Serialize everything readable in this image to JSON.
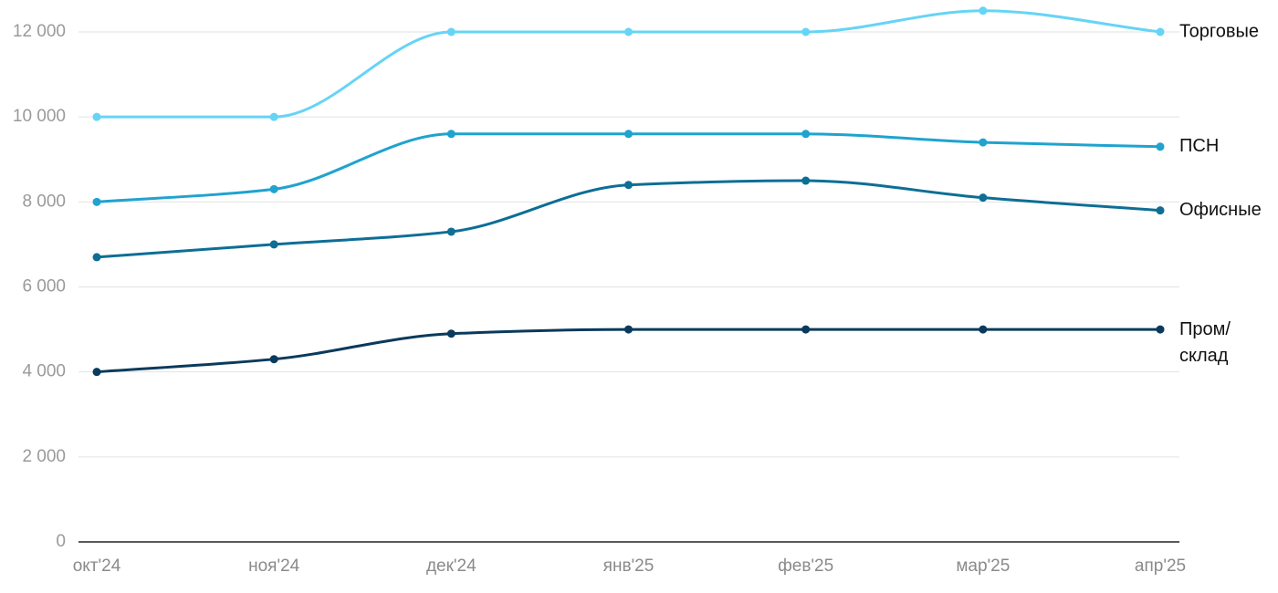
{
  "chart_data": {
    "type": "line",
    "categories": [
      "окт'24",
      "ноя'24",
      "дек'24",
      "янв'25",
      "фев'25",
      "мар'25",
      "апр'25"
    ],
    "series": [
      {
        "name": "Торговые",
        "color": "#66d4f5",
        "values": [
          10000,
          10000,
          12000,
          12000,
          12000,
          12500,
          12000
        ]
      },
      {
        "name": "ПСН",
        "color": "#1fa3cf",
        "values": [
          8000,
          8300,
          9600,
          9600,
          9600,
          9400,
          9300
        ]
      },
      {
        "name": "Офисные",
        "color": "#0d6e96",
        "values": [
          6700,
          7000,
          7300,
          8400,
          8500,
          8100,
          7800
        ]
      },
      {
        "name": "Пром/склад",
        "color": "#0a3a5c",
        "values": [
          4000,
          4300,
          4900,
          5000,
          5000,
          5000,
          5000
        ]
      }
    ],
    "ylim": [
      0,
      12000
    ],
    "yticks": [
      0,
      {
        "value": 2000,
        "label": "2 000"
      },
      {
        "value": 4000,
        "label": "4 000"
      },
      {
        "value": 6000,
        "label": "6 000"
      },
      {
        "value": 8000,
        "label": "8 000"
      },
      {
        "value": 10000,
        "label": "10 000"
      },
      {
        "value": 12000,
        "label": "12 000"
      }
    ],
    "grid": true
  }
}
